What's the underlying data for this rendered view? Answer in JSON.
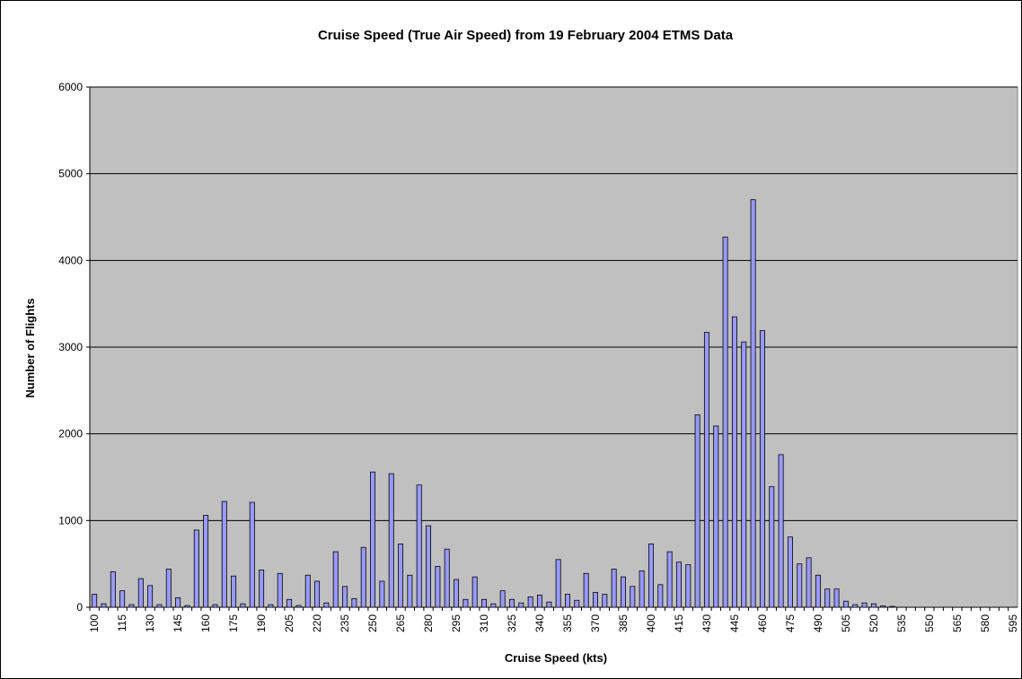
{
  "chart_data": {
    "type": "bar",
    "title": "Cruise Speed (True Air Speed) from 19 February 2004  ETMS Data",
    "xlabel": "Cruise Speed (kts)",
    "ylabel": "Number of Flights",
    "categories": [
      "100",
      null,
      null,
      "115",
      null,
      null,
      "130",
      null,
      null,
      "145",
      null,
      null,
      "160",
      null,
      null,
      "175",
      null,
      null,
      "190",
      null,
      null,
      "205",
      null,
      null,
      "220",
      null,
      null,
      "235",
      null,
      null,
      "250",
      null,
      null,
      "265",
      null,
      null,
      "280",
      null,
      null,
      "295",
      null,
      null,
      "310",
      null,
      null,
      "325",
      null,
      null,
      "340",
      null,
      null,
      "355",
      null,
      null,
      "370",
      null,
      null,
      "385",
      null,
      null,
      "400",
      null,
      null,
      "415",
      null,
      null,
      "430",
      null,
      null,
      "445",
      null,
      null,
      "460",
      null,
      null,
      "475",
      null,
      null,
      "490",
      null,
      null,
      "505",
      null,
      null,
      "520",
      null,
      null,
      "535",
      null,
      null,
      "550",
      null,
      null,
      "565",
      null,
      null,
      "580",
      null,
      null,
      "595"
    ],
    "values": [
      150,
      40,
      410,
      190,
      30,
      330,
      250,
      30,
      440,
      110,
      20,
      890,
      1060,
      30,
      1220,
      360,
      40,
      1210,
      430,
      30,
      390,
      90,
      20,
      370,
      300,
      50,
      640,
      240,
      100,
      690,
      1560,
      300,
      1540,
      730,
      370,
      1410,
      940,
      470,
      670,
      320,
      90,
      350,
      90,
      40,
      190,
      90,
      50,
      120,
      140,
      60,
      550,
      150,
      80,
      390,
      170,
      150,
      440,
      350,
      240,
      420,
      730,
      260,
      640,
      520,
      490,
      2220,
      3170,
      2090,
      4270,
      3350,
      3060,
      4700,
      3190,
      1390,
      1760,
      810,
      500,
      570,
      370,
      210,
      210,
      70,
      30,
      50,
      40,
      15,
      10,
      0,
      0,
      0,
      0,
      0,
      0,
      0,
      0,
      0,
      0,
      0,
      0,
      0
    ],
    "color": "#9999ff",
    "ylim": [
      0,
      6000
    ],
    "yticks": [
      0,
      1000,
      2000,
      3000,
      4000,
      5000,
      6000
    ],
    "grid": true
  }
}
